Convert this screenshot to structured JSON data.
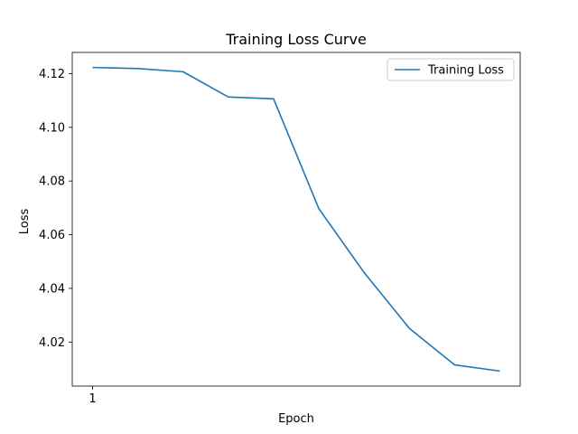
{
  "chart_data": {
    "type": "line",
    "title": "Training Loss Curve",
    "xlabel": "Epoch",
    "ylabel": "Loss",
    "x": [
      1,
      2,
      3,
      4,
      5,
      6,
      7,
      8,
      9,
      10
    ],
    "series": [
      {
        "name": "Training Loss",
        "color": "#1f77b4",
        "values": [
          4.1223,
          4.1219,
          4.1207,
          4.1113,
          4.1106,
          4.0697,
          4.0459,
          4.0251,
          4.0115,
          4.0092
        ]
      }
    ],
    "xticks": [
      "1"
    ],
    "yticks": [
      "4.02",
      "4.04",
      "4.06",
      "4.08",
      "4.10",
      "4.12"
    ],
    "xlim": [
      0.55,
      10.45
    ],
    "ylim": [
      4.0036,
      4.1279
    ],
    "grid": false,
    "legend_position": "top-right"
  }
}
